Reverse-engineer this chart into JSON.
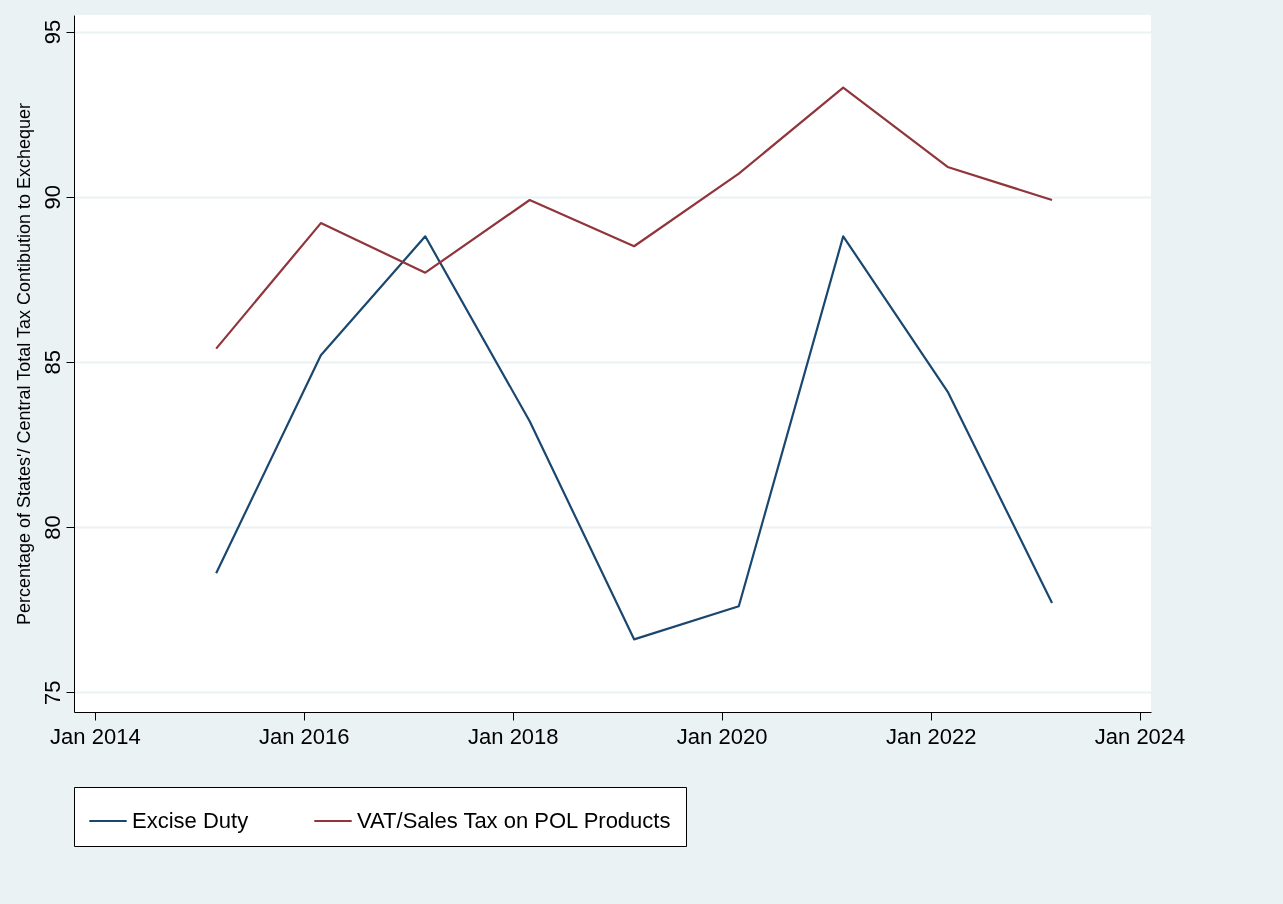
{
  "chart_data": {
    "type": "line",
    "ylabel": "Percentage of States'/ Central Total Tax Contibution to Exchequer",
    "x": [
      "2015-03",
      "2016-03",
      "2017-03",
      "2018-03",
      "2019-03",
      "2020-03",
      "2021-03",
      "2022-03",
      "2023-03"
    ],
    "series": [
      {
        "name": "Excise Duty",
        "color": "#1a476f",
        "values": [
          78.6,
          85.2,
          88.8,
          83.2,
          76.6,
          77.6,
          88.8,
          84.1,
          77.7
        ]
      },
      {
        "name": "VAT/Sales Tax on POL Products",
        "color": "#90353b",
        "values": [
          85.4,
          89.2,
          87.7,
          89.9,
          88.5,
          90.7,
          93.3,
          90.9,
          89.9
        ]
      }
    ],
    "xlim": [
      "2013-10-20",
      "2024-02-10"
    ],
    "xticks": [
      {
        "value": "2014-01",
        "label": "Jan 2014"
      },
      {
        "value": "2016-01",
        "label": "Jan 2016"
      },
      {
        "value": "2018-01",
        "label": "Jan 2018"
      },
      {
        "value": "2020-01",
        "label": "Jan 2020"
      },
      {
        "value": "2022-01",
        "label": "Jan 2022"
      },
      {
        "value": "2024-01",
        "label": "Jan 2024"
      }
    ],
    "ylim": [
      74.4,
      95.5
    ],
    "yticks": [
      75,
      80,
      85,
      90,
      95
    ],
    "grid": "y",
    "legend": "bottom"
  }
}
